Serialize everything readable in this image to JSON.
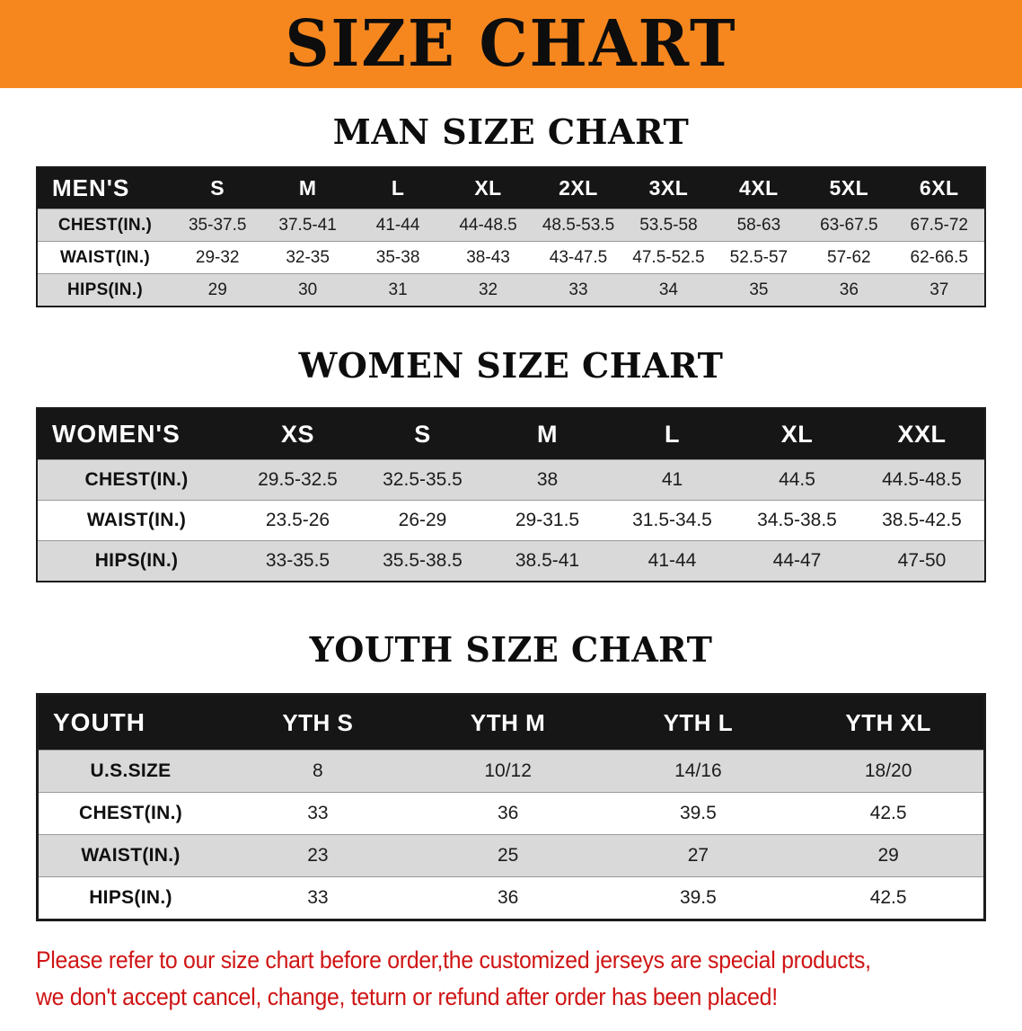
{
  "banner": {
    "title": "SIZE CHART",
    "background": "#f6871f"
  },
  "chart_data": [
    {
      "type": "table",
      "key": "mens",
      "title": "MAN SIZE CHART",
      "corner_label": "MEN'S",
      "columns": [
        "S",
        "M",
        "L",
        "XL",
        "2XL",
        "3XL",
        "4XL",
        "5XL",
        "6XL"
      ],
      "rows": [
        {
          "label": "CHEST(IN.)",
          "values": [
            "35-37.5",
            "37.5-41",
            "41-44",
            "44-48.5",
            "48.5-53.5",
            "53.5-58",
            "58-63",
            "63-67.5",
            "67.5-72"
          ]
        },
        {
          "label": "WAIST(IN.)",
          "values": [
            "29-32",
            "32-35",
            "35-38",
            "38-43",
            "43-47.5",
            "47.5-52.5",
            "52.5-57",
            "57-62",
            "62-66.5"
          ]
        },
        {
          "label": "HIPS(IN.)",
          "values": [
            "29",
            "30",
            "31",
            "32",
            "33",
            "34",
            "35",
            "36",
            "37"
          ]
        }
      ]
    },
    {
      "type": "table",
      "key": "womens",
      "title": "WOMEN SIZE CHART",
      "corner_label": "WOMEN'S",
      "columns": [
        "XS",
        "S",
        "M",
        "L",
        "XL",
        "XXL"
      ],
      "rows": [
        {
          "label": "CHEST(IN.)",
          "values": [
            "29.5-32.5",
            "32.5-35.5",
            "38",
            "41",
            "44.5",
            "44.5-48.5"
          ]
        },
        {
          "label": "WAIST(IN.)",
          "values": [
            "23.5-26",
            "26-29",
            "29-31.5",
            "31.5-34.5",
            "34.5-38.5",
            "38.5-42.5"
          ]
        },
        {
          "label": "HIPS(IN.)",
          "values": [
            "33-35.5",
            "35.5-38.5",
            "38.5-41",
            "41-44",
            "44-47",
            "47-50"
          ]
        }
      ]
    },
    {
      "type": "table",
      "key": "youth",
      "title": "YOUTH SIZE CHART",
      "corner_label": "YOUTH",
      "columns": [
        "YTH S",
        "YTH M",
        "YTH L",
        "YTH XL"
      ],
      "rows": [
        {
          "label": "U.S.SIZE",
          "values": [
            "8",
            "10/12",
            "14/16",
            "18/20"
          ]
        },
        {
          "label": "CHEST(IN.)",
          "values": [
            "33",
            "36",
            "39.5",
            "42.5"
          ]
        },
        {
          "label": "WAIST(IN.)",
          "values": [
            "23",
            "25",
            "27",
            "29"
          ]
        },
        {
          "label": "HIPS(IN.)",
          "values": [
            "33",
            "36",
            "39.5",
            "42.5"
          ]
        }
      ]
    }
  ],
  "footer": {
    "color": "#cf1414",
    "line1": "Please refer to our size chart before order,the customized jerseys are special products,",
    "line2": "we don't accept cancel, change, teturn or refund after order has been placed!"
  }
}
